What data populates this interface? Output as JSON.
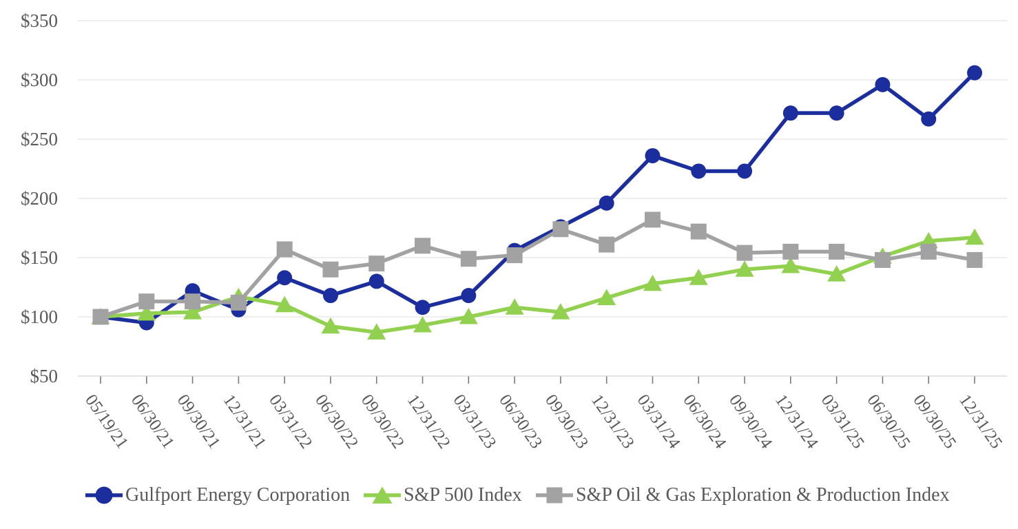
{
  "chart_data": {
    "type": "line",
    "title": "",
    "categories": [
      "05/19/21",
      "06/30/21",
      "09/30/21",
      "12/31/21",
      "03/31/22",
      "06/30/22",
      "09/30/22",
      "12/31/22",
      "03/31/23",
      "06/30/23",
      "09/30/23",
      "12/31/23",
      "03/31/24",
      "06/30/24",
      "09/30/24",
      "12/31/24",
      "03/31/25",
      "06/30/25",
      "09/30/25",
      "12/31/25"
    ],
    "series": [
      {
        "name": "Gulfport Energy Corporation",
        "marker": "circle",
        "color": "#1c2e9e",
        "values": [
          100,
          95,
          122,
          106,
          133,
          118,
          130,
          108,
          118,
          156,
          176,
          196,
          236,
          223,
          223,
          272,
          272,
          296,
          267,
          306
        ]
      },
      {
        "name": "S&P 500 Index",
        "marker": "triangle",
        "color": "#92d050",
        "values": [
          100,
          103,
          104,
          117,
          110,
          92,
          87,
          93,
          100,
          108,
          104,
          116,
          128,
          133,
          140,
          143,
          136,
          151,
          164,
          167
        ]
      },
      {
        "name": "S&P Oil & Gas Exploration & Production Index",
        "marker": "square",
        "color": "#a2a2a2",
        "values": [
          100,
          113,
          113,
          112,
          157,
          140,
          145,
          160,
          149,
          152,
          174,
          161,
          182,
          172,
          154,
          155,
          155,
          148,
          155,
          148
        ]
      }
    ],
    "y_axis": {
      "tick_labels": [
        "$350",
        "$300",
        "$250",
        "$200",
        "$150",
        "$100",
        "$50"
      ],
      "tick_values": [
        350,
        300,
        250,
        200,
        150,
        100,
        50
      ],
      "min": 50,
      "max": 350
    },
    "x_axis": {
      "label_rotation_deg": 55
    },
    "grid": true,
    "legend_position": "bottom",
    "styles": {
      "grid_color": "#e9e9e9",
      "baseline_color": "#dcdcdc",
      "tick_color": "#7a7a7a",
      "axis_text_color": "#595959"
    }
  }
}
